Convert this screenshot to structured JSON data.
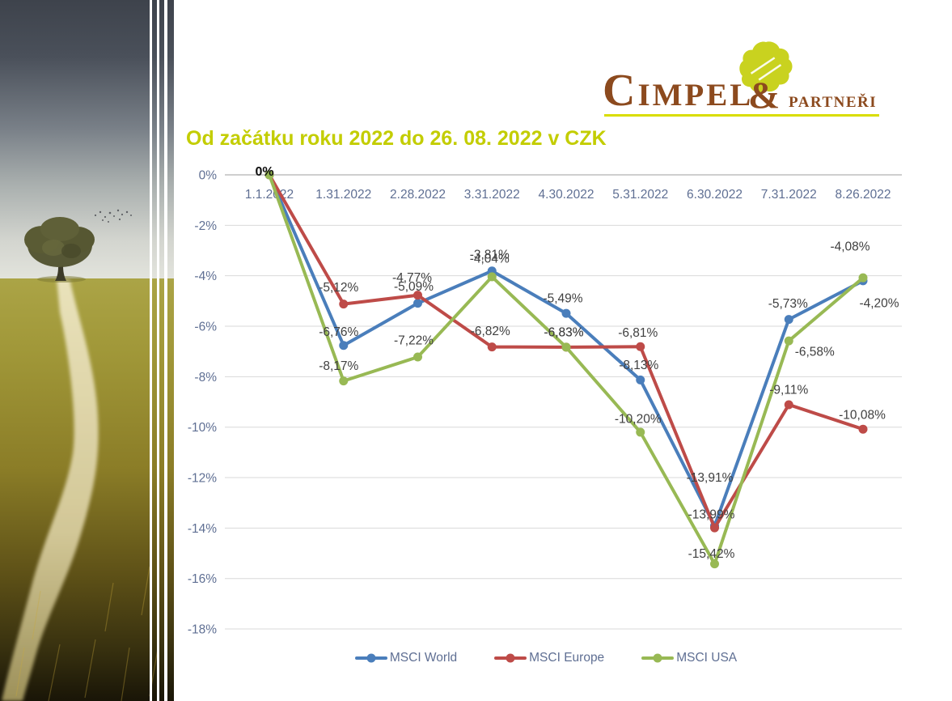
{
  "page": {
    "background": "#FFFFFF"
  },
  "logo": {
    "word1": "Cimpel",
    "ampersand": "&",
    "word2": "partneři",
    "brown": "#8C4A1E",
    "leaf_green": "#C9D21F",
    "underline_color": "#D9DD00"
  },
  "title": {
    "text": "Od začátku roku 2022 do 26. 08. 2022 v CZK",
    "color": "#C3CD00"
  },
  "chart_data": {
    "type": "line",
    "title": "Od začátku roku 2022 do 26. 08. 2022 v CZK",
    "categories": [
      "1.1.2022",
      "1.31.2022",
      "2.28.2022",
      "3.31.2022",
      "4.30.2022",
      "5.31.2022",
      "6.30.2022",
      "7.31.2022",
      "8.26.2022"
    ],
    "y_ticks": [
      "0%",
      "-2%",
      "-4%",
      "-6%",
      "-8%",
      "-10%",
      "-12%",
      "-14%",
      "-16%",
      "-18%"
    ],
    "ylim": [
      -18,
      0
    ],
    "grid": true,
    "legend_position": "bottom",
    "colors": {
      "grid": "#D9D9D9",
      "axis": "#BFBFBF",
      "axis_text": "#5F6F93",
      "label_text": "#404040"
    },
    "series": [
      {
        "name": "MSCI World",
        "color": "#4A7EBB",
        "values": [
          0,
          -6.76,
          -5.09,
          -3.81,
          -5.49,
          -8.13,
          -13.91,
          -5.73,
          -4.2
        ],
        "labels": [
          "",
          "-6,76%",
          "-5,09%",
          "-3,81%",
          "-5,49%",
          "-8,13%",
          "-13,91%",
          "-5,73%",
          "-4,20%"
        ],
        "label_offsets": [
          [
            0,
            0
          ],
          [
            -6,
            -17
          ],
          [
            -5,
            -21
          ],
          [
            -3,
            -21
          ],
          [
            -4,
            -19
          ],
          [
            -2,
            -19
          ],
          [
            -6,
            -60
          ],
          [
            -1,
            -20
          ],
          [
            20,
            27
          ]
        ]
      },
      {
        "name": "MSCI Europe",
        "color": "#BE4B48",
        "values": [
          0,
          -5.12,
          -4.77,
          -6.82,
          -6.83,
          -6.81,
          -13.99,
          -9.11,
          -10.08
        ],
        "labels": [
          "",
          "-5,12%",
          "-4,77%",
          "-6,82%",
          "-6,83%",
          "-6,81%",
          "-13,99%",
          "-9,11%",
          "-10,08%"
        ],
        "label_offsets": [
          [
            0,
            0
          ],
          [
            -6,
            -21
          ],
          [
            -7,
            -22
          ],
          [
            -2,
            -20
          ],
          [
            -3,
            -19
          ],
          [
            -3,
            -18
          ],
          [
            -4,
            -17
          ],
          [
            0,
            -19
          ],
          [
            -1,
            -18
          ]
        ]
      },
      {
        "name": "MSCI USA",
        "color": "#98B954",
        "values": [
          0,
          -8.17,
          -7.22,
          -4.04,
          -6.83,
          -10.2,
          -15.42,
          -6.58,
          -4.08
        ],
        "labels": [
          "",
          "-8,17%",
          "-7,22%",
          "-4,04%",
          "-6,83%",
          "-10,20%",
          "-15,42%",
          "-6,58%",
          "-4,08%"
        ],
        "label_offsets": [
          [
            0,
            0
          ],
          [
            -6,
            -19
          ],
          [
            -5,
            -21
          ],
          [
            -3,
            -23
          ],
          [
            -3,
            -19
          ],
          [
            -3,
            -17
          ],
          [
            -4,
            -13
          ],
          [
            32,
            13
          ],
          [
            -16,
            -39
          ]
        ]
      }
    ],
    "annotations": [
      {
        "text": "0%",
        "series_index": 0,
        "point_index": 0,
        "dx": -6,
        "dy": -5,
        "bold": true
      }
    ]
  }
}
